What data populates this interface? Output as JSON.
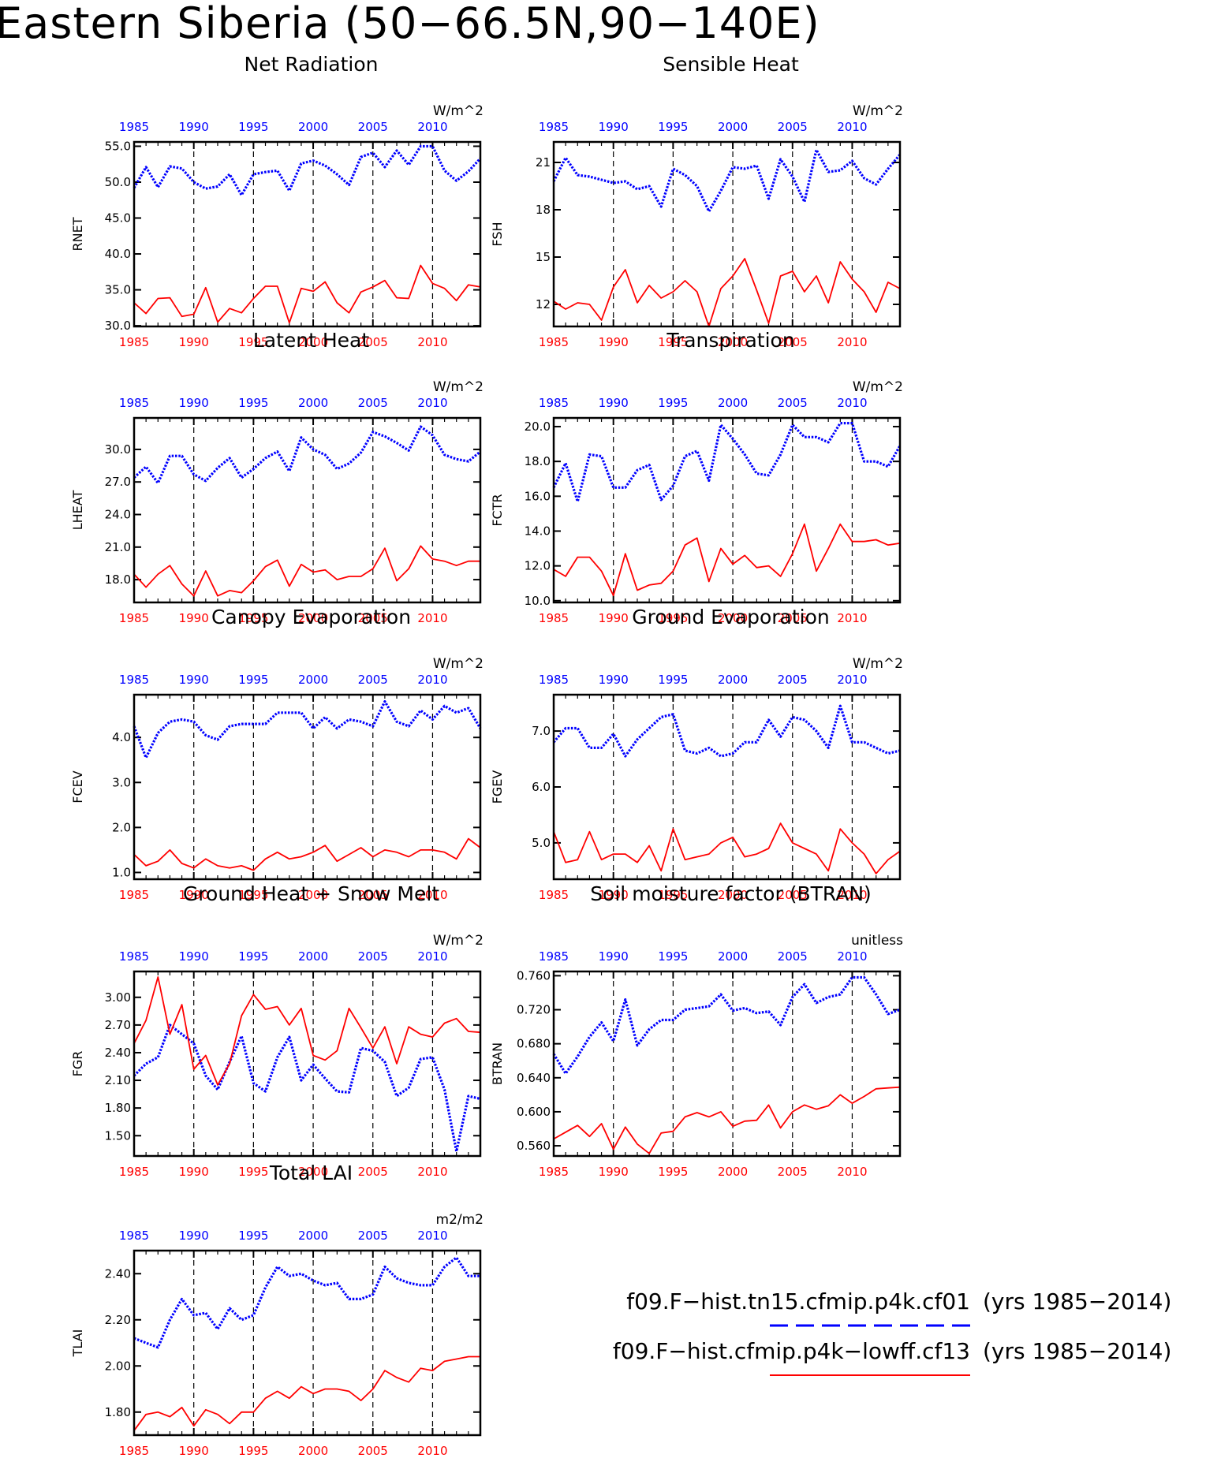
{
  "title": "Eastern Siberia (50−66.5N,90−140E)",
  "colors": {
    "blue": "#0000ff",
    "red": "#ff0000",
    "axis": "#000000"
  },
  "years": [
    1985,
    1986,
    1987,
    1988,
    1989,
    1990,
    1991,
    1992,
    1993,
    1994,
    1995,
    1996,
    1997,
    1998,
    1999,
    2000,
    2001,
    2002,
    2003,
    2004,
    2005,
    2006,
    2007,
    2008,
    2009,
    2010,
    2011,
    2012,
    2013,
    2014
  ],
  "xticks": [
    "1985",
    "1990",
    "1995",
    "2000",
    "2005",
    "2010"
  ],
  "legend": [
    {
      "label": "f09.F−hist.tn15.cfmip.p4k.cf01",
      "years": "(yrs 1985−2014)",
      "color": "#0000ff",
      "style": "dashed"
    },
    {
      "label": "f09.F−hist.cfmip.p4k−lowff.cf13",
      "years": "(yrs 1985−2014)",
      "color": "#ff0000",
      "style": "solid"
    }
  ],
  "chart_data": [
    {
      "type": "line",
      "title": "Net Radiation",
      "ylabel": "RNET",
      "units": "W/m^2",
      "ylim": [
        29.9,
        55.6
      ],
      "yticks": [
        30.0,
        35.0,
        40.0,
        45.0,
        50.0,
        55.0
      ],
      "yfmt": 1,
      "series": [
        {
          "color": "#0000ff",
          "values": [
            49.2,
            52.1,
            49.3,
            52.2,
            51.9,
            50.0,
            49.1,
            49.4,
            51.1,
            48.2,
            51.1,
            51.4,
            51.6,
            48.8,
            52.6,
            53.0,
            52.3,
            51.1,
            49.6,
            53.5,
            54.1,
            52.1,
            54.4,
            52.4,
            55.0,
            55.0,
            51.6,
            50.2,
            51.5,
            53.3
          ]
        },
        {
          "color": "#ff0000",
          "values": [
            33.2,
            31.7,
            33.8,
            33.9,
            31.3,
            31.6,
            35.3,
            30.5,
            32.4,
            31.8,
            33.8,
            35.5,
            35.5,
            30.4,
            35.2,
            34.8,
            36.1,
            33.2,
            31.8,
            34.7,
            35.4,
            36.3,
            33.9,
            33.8,
            38.4,
            35.9,
            35.2,
            33.5,
            35.7,
            35.4
          ]
        }
      ]
    },
    {
      "type": "line",
      "title": "Sensible Heat",
      "ylabel": "FSH",
      "units": "W/m^2",
      "ylim": [
        10.6,
        22.3
      ],
      "yticks": [
        12,
        15,
        18,
        21
      ],
      "yfmt": 0,
      "series": [
        {
          "color": "#0000ff",
          "values": [
            19.8,
            21.3,
            20.2,
            20.1,
            19.9,
            19.7,
            19.8,
            19.3,
            19.5,
            18.2,
            20.6,
            20.2,
            19.5,
            17.9,
            19.2,
            20.7,
            20.6,
            20.8,
            18.7,
            21.2,
            20.1,
            18.5,
            21.8,
            20.4,
            20.5,
            21.1,
            20.0,
            19.6,
            20.6,
            21.5
          ]
        },
        {
          "color": "#ff0000",
          "values": [
            12.2,
            11.7,
            12.1,
            12.0,
            11.0,
            13.1,
            14.2,
            12.1,
            13.2,
            12.4,
            12.8,
            13.5,
            12.8,
            10.6,
            13.0,
            13.8,
            14.9,
            12.9,
            10.8,
            13.8,
            14.1,
            12.8,
            13.8,
            12.1,
            14.7,
            13.6,
            12.8,
            11.5,
            13.4,
            13.0
          ]
        }
      ]
    },
    {
      "type": "line",
      "title": "Latent Heat",
      "ylabel": "LHEAT",
      "units": "W/m^2",
      "ylim": [
        15.9,
        32.9
      ],
      "yticks": [
        18.0,
        21.0,
        24.0,
        27.0,
        30.0
      ],
      "yfmt": 1,
      "series": [
        {
          "color": "#0000ff",
          "values": [
            27.4,
            28.4,
            26.9,
            29.4,
            29.4,
            27.7,
            27.1,
            28.3,
            29.2,
            27.4,
            28.2,
            29.2,
            29.8,
            28.0,
            31.1,
            30.0,
            29.5,
            28.2,
            28.7,
            29.7,
            31.6,
            31.2,
            30.6,
            29.9,
            32.1,
            31.3,
            29.5,
            29.1,
            28.9,
            29.8
          ]
        },
        {
          "color": "#ff0000",
          "values": [
            18.5,
            17.3,
            18.5,
            19.3,
            17.6,
            16.5,
            18.8,
            16.5,
            17.0,
            16.8,
            17.9,
            19.2,
            19.8,
            17.4,
            19.4,
            18.7,
            18.9,
            18.0,
            18.3,
            18.3,
            19.0,
            20.9,
            17.9,
            19.0,
            21.1,
            19.9,
            19.7,
            19.3,
            19.7,
            19.7
          ]
        }
      ]
    },
    {
      "type": "line",
      "title": "Transpiration",
      "ylabel": "FCTR",
      "units": "W/m^2",
      "ylim": [
        9.9,
        20.5
      ],
      "yticks": [
        10.0,
        12.0,
        14.0,
        16.0,
        18.0,
        20.0
      ],
      "yfmt": 1,
      "series": [
        {
          "color": "#0000ff",
          "values": [
            16.5,
            17.9,
            15.7,
            18.4,
            18.3,
            16.5,
            16.5,
            17.5,
            17.8,
            15.8,
            16.6,
            18.3,
            18.6,
            16.9,
            20.1,
            19.3,
            18.4,
            17.3,
            17.2,
            18.4,
            20.1,
            19.4,
            19.4,
            19.1,
            20.2,
            20.2,
            18.0,
            18.0,
            17.7,
            18.9
          ]
        },
        {
          "color": "#ff0000",
          "values": [
            11.8,
            11.4,
            12.5,
            12.5,
            11.7,
            10.3,
            12.7,
            10.6,
            10.9,
            11.0,
            11.7,
            13.2,
            13.6,
            11.1,
            13.0,
            12.1,
            12.6,
            11.9,
            12.0,
            11.4,
            12.7,
            14.4,
            11.7,
            13.0,
            14.4,
            13.4,
            13.4,
            13.5,
            13.2,
            13.3
          ]
        }
      ]
    },
    {
      "type": "line",
      "title": "Canopy Evaporation",
      "ylabel": "FCEV",
      "units": "W/m^2",
      "ylim": [
        0.85,
        4.95
      ],
      "yticks": [
        1.0,
        2.0,
        3.0,
        4.0
      ],
      "yfmt": 1,
      "series": [
        {
          "color": "#0000ff",
          "values": [
            4.25,
            3.55,
            4.1,
            4.35,
            4.4,
            4.35,
            4.05,
            3.95,
            4.25,
            4.3,
            4.3,
            4.3,
            4.55,
            4.55,
            4.55,
            4.2,
            4.45,
            4.2,
            4.4,
            4.35,
            4.25,
            4.8,
            4.35,
            4.25,
            4.6,
            4.4,
            4.7,
            4.55,
            4.65,
            4.2
          ]
        },
        {
          "color": "#ff0000",
          "values": [
            1.4,
            1.15,
            1.25,
            1.5,
            1.2,
            1.1,
            1.3,
            1.15,
            1.1,
            1.15,
            1.05,
            1.3,
            1.45,
            1.3,
            1.35,
            1.45,
            1.6,
            1.25,
            1.4,
            1.55,
            1.35,
            1.5,
            1.45,
            1.35,
            1.5,
            1.5,
            1.45,
            1.3,
            1.75,
            1.55
          ]
        }
      ]
    },
    {
      "type": "line",
      "title": "Ground Evaporation",
      "ylabel": "FGEV",
      "units": "W/m^2",
      "ylim": [
        4.35,
        7.65
      ],
      "yticks": [
        5.0,
        6.0,
        7.0
      ],
      "yfmt": 1,
      "series": [
        {
          "color": "#0000ff",
          "values": [
            6.8,
            7.05,
            7.05,
            6.7,
            6.7,
            6.95,
            6.55,
            6.85,
            7.05,
            7.25,
            7.3,
            6.65,
            6.6,
            6.7,
            6.55,
            6.6,
            6.8,
            6.8,
            7.2,
            6.9,
            7.25,
            7.2,
            7.0,
            6.7,
            7.45,
            6.8,
            6.8,
            6.7,
            6.6,
            6.65
          ]
        },
        {
          "color": "#ff0000",
          "values": [
            5.2,
            4.65,
            4.7,
            5.2,
            4.7,
            4.8,
            4.8,
            4.65,
            4.95,
            4.5,
            5.25,
            4.7,
            4.75,
            4.8,
            5.0,
            5.1,
            4.75,
            4.8,
            4.9,
            5.35,
            5.0,
            4.9,
            4.8,
            4.5,
            5.25,
            5.0,
            4.8,
            4.45,
            4.7,
            4.85
          ]
        }
      ]
    },
    {
      "type": "line",
      "title": "Ground Heat + Snow Melt",
      "ylabel": "FGR",
      "units": "W/m^2",
      "ylim": [
        1.28,
        3.28
      ],
      "yticks": [
        1.5,
        1.8,
        2.1,
        2.4,
        2.7,
        3.0
      ],
      "yfmt": 2,
      "series": [
        {
          "color": "#0000ff",
          "values": [
            2.15,
            2.28,
            2.35,
            2.7,
            2.6,
            2.5,
            2.15,
            2.0,
            2.3,
            2.58,
            2.07,
            1.98,
            2.35,
            2.57,
            2.1,
            2.27,
            2.12,
            1.98,
            1.97,
            2.45,
            2.42,
            2.3,
            1.93,
            2.02,
            2.33,
            2.35,
            2.0,
            1.33,
            1.93,
            1.9
          ]
        },
        {
          "color": "#ff0000",
          "values": [
            2.5,
            2.75,
            3.22,
            2.6,
            2.92,
            2.22,
            2.37,
            2.05,
            2.28,
            2.8,
            3.03,
            2.87,
            2.9,
            2.7,
            2.88,
            2.37,
            2.32,
            2.42,
            2.88,
            2.67,
            2.45,
            2.68,
            2.28,
            2.68,
            2.6,
            2.57,
            2.72,
            2.77,
            2.63,
            2.62
          ]
        }
      ]
    },
    {
      "type": "line",
      "title": "Soil moisture factor (BTRAN)",
      "ylabel": "BTRAN",
      "units": "unitless",
      "ylim": [
        0.548,
        0.765
      ],
      "yticks": [
        0.56,
        0.6,
        0.64,
        0.68,
        0.72,
        0.76
      ],
      "yfmt": 3,
      "series": [
        {
          "color": "#0000ff",
          "values": [
            0.668,
            0.645,
            0.665,
            0.688,
            0.705,
            0.683,
            0.732,
            0.678,
            0.697,
            0.708,
            0.708,
            0.72,
            0.722,
            0.724,
            0.738,
            0.719,
            0.722,
            0.716,
            0.718,
            0.702,
            0.735,
            0.75,
            0.728,
            0.735,
            0.738,
            0.758,
            0.758,
            0.738,
            0.715,
            0.72
          ]
        },
        {
          "color": "#ff0000",
          "values": [
            0.568,
            0.576,
            0.584,
            0.571,
            0.586,
            0.556,
            0.582,
            0.562,
            0.551,
            0.575,
            0.577,
            0.594,
            0.599,
            0.594,
            0.6,
            0.583,
            0.589,
            0.59,
            0.608,
            0.581,
            0.6,
            0.608,
            0.603,
            0.607,
            0.62,
            0.61,
            0.618,
            0.627,
            0.628,
            0.629
          ]
        }
      ]
    },
    {
      "type": "line",
      "title": "Total LAI",
      "ylabel": "TLAI",
      "units": "m2/m2",
      "ylim": [
        1.7,
        2.5
      ],
      "yticks": [
        1.8,
        2.0,
        2.2,
        2.4
      ],
      "yfmt": 2,
      "series": [
        {
          "color": "#0000ff",
          "values": [
            2.12,
            2.1,
            2.08,
            2.2,
            2.29,
            2.22,
            2.23,
            2.16,
            2.25,
            2.2,
            2.22,
            2.34,
            2.43,
            2.39,
            2.4,
            2.37,
            2.35,
            2.36,
            2.29,
            2.29,
            2.31,
            2.43,
            2.38,
            2.36,
            2.35,
            2.35,
            2.43,
            2.47,
            2.39,
            2.39
          ]
        },
        {
          "color": "#ff0000",
          "values": [
            1.72,
            1.79,
            1.8,
            1.78,
            1.82,
            1.74,
            1.81,
            1.79,
            1.75,
            1.8,
            1.8,
            1.86,
            1.89,
            1.86,
            1.91,
            1.88,
            1.9,
            1.9,
            1.89,
            1.85,
            1.9,
            1.98,
            1.95,
            1.93,
            1.99,
            1.98,
            2.02,
            2.03,
            2.04,
            2.04
          ]
        }
      ]
    }
  ]
}
